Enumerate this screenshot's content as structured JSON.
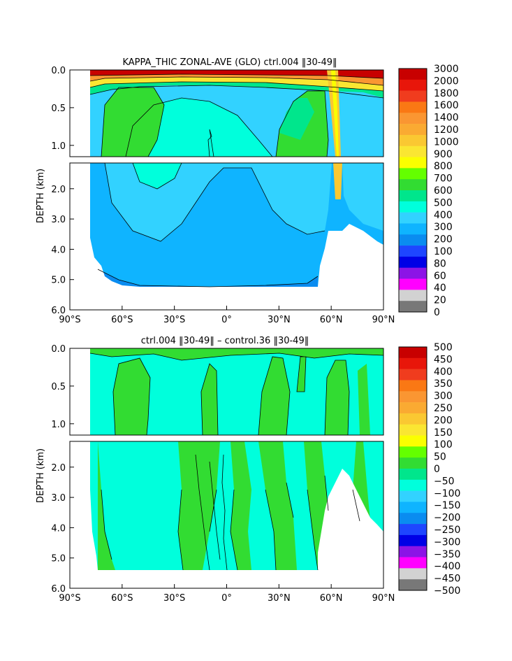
{
  "chart_data": [
    {
      "type": "heatmap",
      "title": "KAPPA_THIC ZONAL-AVE (GLO) ctrl.004 ‖30-49‖",
      "ylabel": "DEPTH (km)",
      "xlabel": "",
      "x_ticks": [
        "90°S",
        "60°S",
        "30°S",
        "0°",
        "30°N",
        "60°N",
        "90°N"
      ],
      "x_tick_values": [
        -90,
        -60,
        -30,
        0,
        30,
        60,
        90
      ],
      "y_ticks_upper": [
        "0.0",
        "0.5",
        "1.0"
      ],
      "y_tick_values_upper": [
        0.0,
        0.5,
        1.0
      ],
      "y_ticks_lower": [
        "2.0",
        "3.0",
        "4.0",
        "5.0",
        "6.0"
      ],
      "y_tick_values_lower": [
        2.0,
        3.0,
        4.0,
        5.0,
        6.0
      ],
      "xlim": [
        -90,
        90
      ],
      "ylim_upper": [
        0,
        1.15
      ],
      "ylim_lower": [
        1.15,
        6.0
      ],
      "colorbar_labels": [
        "3000",
        "2000",
        "1800",
        "1600",
        "1400",
        "1200",
        "1000",
        "900",
        "800",
        "700",
        "600",
        "500",
        "400",
        "300",
        "200",
        "100",
        "80",
        "60",
        "40",
        "20",
        "0"
      ],
      "colorbar_colors": [
        "#c80000",
        "#e8160a",
        "#f03c1e",
        "#fa7814",
        "#fa9632",
        "#faaa32",
        "#fac832",
        "#fae632",
        "#faff00",
        "#64ff00",
        "#32dc32",
        "#00e68c",
        "#00ffdc",
        "#32d2ff",
        "#0fb4ff",
        "#0a8cf0",
        "#1e46ff",
        "#0000e6",
        "#8c14e6",
        "#ff00ff",
        "#d2d2d2",
        "#787878"
      ]
    },
    {
      "type": "heatmap",
      "title": "ctrl.004 ‖30-49‖ – control.36 ‖30-49‖",
      "ylabel": "DEPTH (km)",
      "xlabel": "",
      "x_ticks": [
        "90°S",
        "60°S",
        "30°S",
        "0°",
        "30°N",
        "60°N",
        "90°N"
      ],
      "x_tick_values": [
        -90,
        -60,
        -30,
        0,
        30,
        60,
        90
      ],
      "y_ticks_upper": [
        "0.0",
        "0.5",
        "1.0"
      ],
      "y_tick_values_upper": [
        0.0,
        0.5,
        1.0
      ],
      "y_ticks_lower": [
        "2.0",
        "3.0",
        "4.0",
        "5.0",
        "6.0"
      ],
      "y_tick_values_lower": [
        2.0,
        3.0,
        4.0,
        5.0,
        6.0
      ],
      "xlim": [
        -90,
        90
      ],
      "ylim_upper": [
        0,
        1.15
      ],
      "ylim_lower": [
        1.15,
        6.0
      ],
      "colorbar_labels": [
        "500",
        "450",
        "400",
        "350",
        "300",
        "250",
        "200",
        "150",
        "100",
        "50",
        "0",
        "−50",
        "−100",
        "−150",
        "−200",
        "−250",
        "−300",
        "−350",
        "−400",
        "−450",
        "−500"
      ],
      "colorbar_colors": [
        "#c80000",
        "#e8160a",
        "#f03c1e",
        "#fa7814",
        "#fa9632",
        "#faaa32",
        "#fac832",
        "#fae632",
        "#faff00",
        "#64ff00",
        "#32dc32",
        "#00e68c",
        "#00ffdc",
        "#32d2ff",
        "#0fb4ff",
        "#0a8cf0",
        "#1e46ff",
        "#0000e6",
        "#8c14e6",
        "#ff00ff",
        "#d2d2d2",
        "#787878"
      ]
    }
  ]
}
